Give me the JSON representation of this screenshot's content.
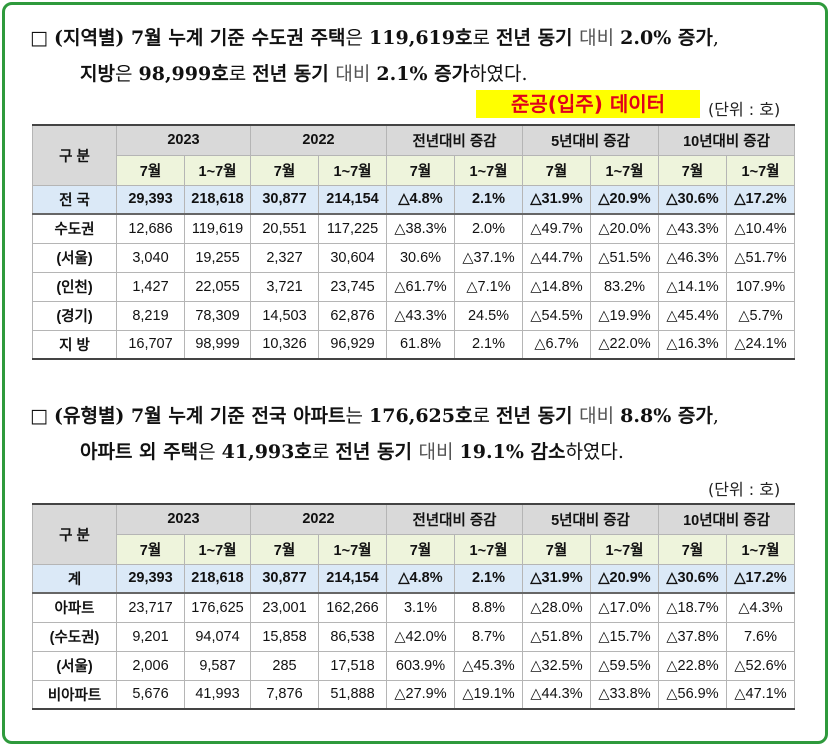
{
  "section1": {
    "line1": [
      {
        "t": "□ ",
        "s": "n"
      },
      {
        "t": "(지역별) 7월 누계 기준 수도권 주택",
        "s": "b"
      },
      {
        "t": "은 ",
        "s": "n"
      },
      {
        "t": "119,619호",
        "s": "b"
      },
      {
        "t": "로 ",
        "s": "n"
      },
      {
        "t": "전년 동기 ",
        "s": "b"
      },
      {
        "t": "대비 ",
        "s": "lt"
      },
      {
        "t": "2.0% 증가",
        "s": "b"
      },
      {
        "t": ",",
        "s": "n"
      }
    ],
    "line2": [
      {
        "t": "지방",
        "s": "b"
      },
      {
        "t": "은 ",
        "s": "n"
      },
      {
        "t": "98,999호",
        "s": "b"
      },
      {
        "t": "로 ",
        "s": "n"
      },
      {
        "t": "전년 동기 ",
        "s": "b"
      },
      {
        "t": "대비 ",
        "s": "lt"
      },
      {
        "t": "2.1% 증가",
        "s": "b"
      },
      {
        "t": "하였다.",
        "s": "n"
      }
    ],
    "banner": "준공(입주) 데이터",
    "unit": "(단위 : 호)",
    "table": {
      "group_header": "구 분",
      "headers": [
        "2023",
        "2022",
        "전년대비 증감",
        "5년대비 증감",
        "10년대비 증감"
      ],
      "subheaders": [
        "7월",
        "1~7월",
        "7월",
        "1~7월",
        "7월",
        "1~7월",
        "7월",
        "1~7월",
        "7월",
        "1~7월"
      ],
      "rows": [
        {
          "label": "전 국",
          "values": [
            "29,393",
            "218,618",
            "30,877",
            "214,154",
            "△4.8%",
            "2.1%",
            "△31.9%",
            "△20.9%",
            "△30.6%",
            "△17.2%"
          ]
        },
        {
          "label": "수도권",
          "values": [
            "12,686",
            "119,619",
            "20,551",
            "117,225",
            "△38.3%",
            "2.0%",
            "△49.7%",
            "△20.0%",
            "△43.3%",
            "△10.4%"
          ]
        },
        {
          "label": "(서울)",
          "values": [
            "3,040",
            "19,255",
            "2,327",
            "30,604",
            "30.6%",
            "△37.1%",
            "△44.7%",
            "△51.5%",
            "△46.3%",
            "△51.7%"
          ]
        },
        {
          "label": "(인천)",
          "values": [
            "1,427",
            "22,055",
            "3,721",
            "23,745",
            "△61.7%",
            "△7.1%",
            "△14.8%",
            "83.2%",
            "△14.1%",
            "107.9%"
          ]
        },
        {
          "label": "(경기)",
          "values": [
            "8,219",
            "78,309",
            "14,503",
            "62,876",
            "△43.3%",
            "24.5%",
            "△54.5%",
            "△19.9%",
            "△45.4%",
            "△5.7%"
          ]
        },
        {
          "label": "지 방",
          "values": [
            "16,707",
            "98,999",
            "10,326",
            "96,929",
            "61.8%",
            "2.1%",
            "△6.7%",
            "△22.0%",
            "△16.3%",
            "△24.1%"
          ]
        }
      ]
    }
  },
  "section2": {
    "line1": [
      {
        "t": "□ ",
        "s": "n"
      },
      {
        "t": "(유형별) 7월 누계 기준 전국 아파트",
        "s": "b"
      },
      {
        "t": "는 ",
        "s": "n"
      },
      {
        "t": "176,625호",
        "s": "b"
      },
      {
        "t": "로 ",
        "s": "n"
      },
      {
        "t": "전년 동기 ",
        "s": "b"
      },
      {
        "t": "대비 ",
        "s": "lt"
      },
      {
        "t": "8.8% 증가",
        "s": "b"
      },
      {
        "t": ",",
        "s": "n"
      }
    ],
    "line2": [
      {
        "t": "아파트 외 주택",
        "s": "b"
      },
      {
        "t": "은 ",
        "s": "n"
      },
      {
        "t": "41,993호",
        "s": "b"
      },
      {
        "t": "로 ",
        "s": "n"
      },
      {
        "t": "전년 동기 ",
        "s": "b"
      },
      {
        "t": "대비 ",
        "s": "lt"
      },
      {
        "t": "19.1% 감소",
        "s": "b"
      },
      {
        "t": "하였다.",
        "s": "n"
      }
    ],
    "unit": "(단위 : 호)",
    "table": {
      "group_header": "구 분",
      "headers": [
        "2023",
        "2022",
        "전년대비 증감",
        "5년대비 증감",
        "10년대비 증감"
      ],
      "subheaders": [
        "7월",
        "1~7월",
        "7월",
        "1~7월",
        "7월",
        "1~7월",
        "7월",
        "1~7월",
        "7월",
        "1~7월"
      ],
      "rows": [
        {
          "label": "계",
          "values": [
            "29,393",
            "218,618",
            "30,877",
            "214,154",
            "△4.8%",
            "2.1%",
            "△31.9%",
            "△20.9%",
            "△30.6%",
            "△17.2%"
          ]
        },
        {
          "label": "아파트",
          "values": [
            "23,717",
            "176,625",
            "23,001",
            "162,266",
            "3.1%",
            "8.8%",
            "△28.0%",
            "△17.0%",
            "△18.7%",
            "△4.3%"
          ]
        },
        {
          "label": "(수도권)",
          "values": [
            "9,201",
            "94,074",
            "15,858",
            "86,538",
            "△42.0%",
            "8.7%",
            "△51.8%",
            "△15.7%",
            "△37.8%",
            "7.6%"
          ]
        },
        {
          "label": "(서울)",
          "values": [
            "2,006",
            "9,587",
            "285",
            "17,518",
            "603.9%",
            "△45.3%",
            "△32.5%",
            "△59.5%",
            "△22.8%",
            "△52.6%"
          ]
        },
        {
          "label": "비아파트",
          "values": [
            "5,676",
            "41,993",
            "7,876",
            "51,888",
            "△27.9%",
            "△19.1%",
            "△44.3%",
            "△33.8%",
            "△56.9%",
            "△47.1%"
          ]
        }
      ]
    }
  }
}
